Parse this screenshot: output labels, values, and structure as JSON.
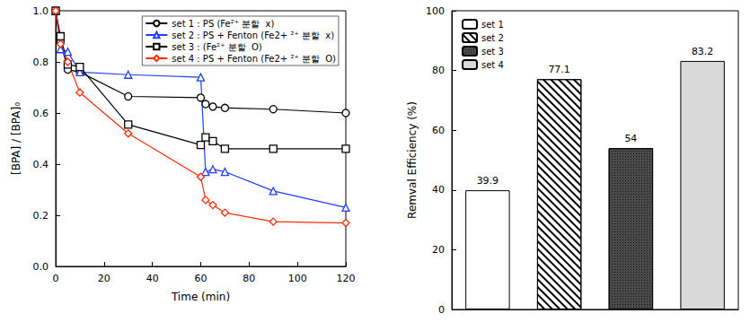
{
  "chart_data": [
    {
      "type": "line",
      "x_label": "Time (min)",
      "y_label": "[BPA] / [BPA]₀",
      "x": [
        0,
        2,
        5,
        10,
        30,
        60,
        62,
        65,
        70,
        90,
        120
      ],
      "series": [
        {
          "name": "set 1 : PS (Fe²⁺ 분할  x)",
          "color": "#000000",
          "marker": "circle",
          "values": [
            1.0,
            0.88,
            0.77,
            0.76,
            0.665,
            0.66,
            0.635,
            0.625,
            0.62,
            0.615,
            0.6
          ]
        },
        {
          "name": "set 2 : PS + Fenton (Fe2+ ²⁺ 분할  x)",
          "color": "#1f3fff",
          "marker": "triangle",
          "values": [
            1.0,
            0.85,
            0.84,
            0.76,
            0.75,
            0.74,
            0.37,
            0.38,
            0.37,
            0.295,
            0.23
          ]
        },
        {
          "name": "set 3 : (Fe²⁺ 분할  O)",
          "color": "#000000",
          "marker": "square",
          "values": [
            1.0,
            0.9,
            0.79,
            0.78,
            0.555,
            0.475,
            0.505,
            0.49,
            0.46,
            0.46,
            0.46
          ]
        },
        {
          "name": "set 4 : PS + Fenton (Fe2+ ²⁺ 분할  O)",
          "color": "#ff2a00",
          "marker": "diamond",
          "values": [
            1.0,
            0.87,
            0.8,
            0.68,
            0.52,
            0.35,
            0.26,
            0.24,
            0.21,
            0.175,
            0.17
          ]
        }
      ],
      "xlim": [
        0,
        120
      ],
      "xticks": [
        0,
        20,
        40,
        60,
        80,
        100,
        120
      ],
      "ylim": [
        0,
        1
      ],
      "yticks": [
        {
          "value": 0,
          "label": "0.0"
        },
        {
          "value": 0.2,
          "label": "0.2"
        },
        {
          "value": 0.4,
          "label": "0.4"
        },
        {
          "value": 0.6,
          "label": "0.6"
        },
        {
          "value": 0.8,
          "label": "0.8"
        },
        {
          "value": 1,
          "label": "1.0"
        }
      ],
      "legend": "upper right",
      "grid": false
    },
    {
      "type": "bar",
      "y_label": "Remval Efficiency (%)",
      "categories": [
        null,
        null,
        null,
        null
      ],
      "series": [
        {
          "name": "set 1",
          "color": "#ffffff",
          "values": [
            39.9,
            null,
            null,
            null
          ]
        },
        {
          "name": "set 2",
          "color": "#ffffff",
          "values": [
            null,
            77.1,
            null,
            null
          ]
        },
        {
          "name": "set 3",
          "color": "#4a4a4a",
          "values": [
            null,
            null,
            54,
            null
          ]
        },
        {
          "name": "set 4",
          "color": "#d9d9d9",
          "values": [
            null,
            null,
            null,
            83.2
          ]
        }
      ],
      "ylim": [
        0,
        100
      ],
      "yticks": [
        0,
        20,
        40,
        60,
        80,
        100
      ],
      "data_labels": true,
      "legend": "upper left",
      "grid": false,
      "tick_labels": "y"
    }
  ]
}
